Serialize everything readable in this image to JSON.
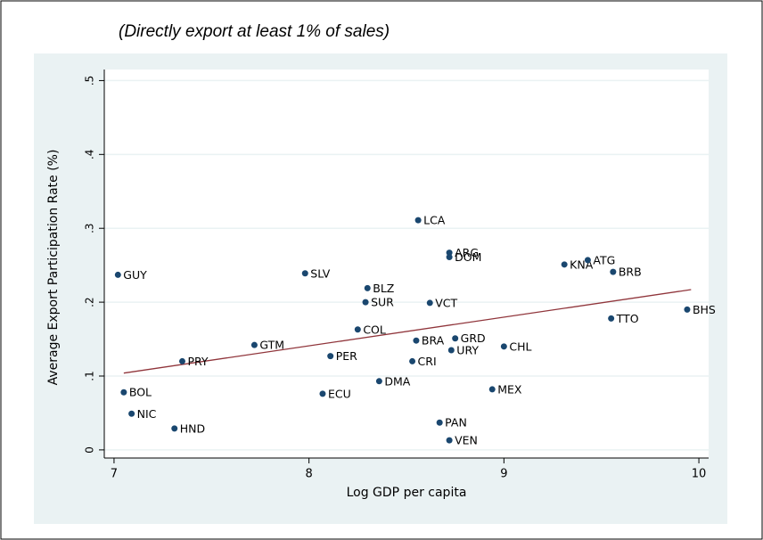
{
  "chart_data": {
    "type": "scatter",
    "title": "(Directly export at least 1% of sales)",
    "xlabel": "Log GDP per capita",
    "ylabel": "Average Export Participation Rate (%)",
    "labels": [
      "GUY",
      "BOL",
      "NIC",
      "HND",
      "PRY",
      "GTM",
      "SLV",
      "ECU",
      "PER",
      "COL",
      "BLZ",
      "SUR",
      "DMA",
      "CRI",
      "BRA",
      "LCA",
      "ARG",
      "DOM",
      "VCT",
      "GRD",
      "URY",
      "PAN",
      "VEN",
      "MEX",
      "CHL",
      "KNA",
      "ATG",
      "BRB",
      "TTO",
      "BHS"
    ],
    "x": [
      7.02,
      7.05,
      7.09,
      7.31,
      7.35,
      7.72,
      7.98,
      8.07,
      8.11,
      8.25,
      8.3,
      8.29,
      8.36,
      8.53,
      8.55,
      8.56,
      8.72,
      8.72,
      8.62,
      8.75,
      8.73,
      8.67,
      8.72,
      8.94,
      9.0,
      9.31,
      9.43,
      9.56,
      9.55,
      9.94
    ],
    "values": [
      0.237,
      0.078,
      0.049,
      0.029,
      0.12,
      0.142,
      0.239,
      0.076,
      0.127,
      0.163,
      0.219,
      0.2,
      0.093,
      0.12,
      0.148,
      0.311,
      0.267,
      0.261,
      0.199,
      0.151,
      0.135,
      0.037,
      0.013,
      0.082,
      0.14,
      0.251,
      0.257,
      0.241,
      0.178,
      0.19
    ],
    "color": "#1a476f",
    "fit": {
      "x": [
        7.05,
        9.96
      ],
      "values": [
        0.104,
        0.217
      ],
      "color": "#90353b"
    },
    "xlim": [
      6.95,
      10.05
    ],
    "xticks": [
      7,
      8,
      9,
      10
    ],
    "ylim": [
      -0.011,
      0.515
    ],
    "yticks": [
      0,
      {
        "value": 0.1,
        "label": ".1"
      },
      {
        "value": 0.2,
        "label": ".2"
      },
      {
        "value": 0.3,
        "label": ".3"
      },
      {
        "value": 0.4,
        "label": ".4"
      },
      {
        "value": 0.5,
        "label": ".5"
      }
    ],
    "grid": true
  }
}
